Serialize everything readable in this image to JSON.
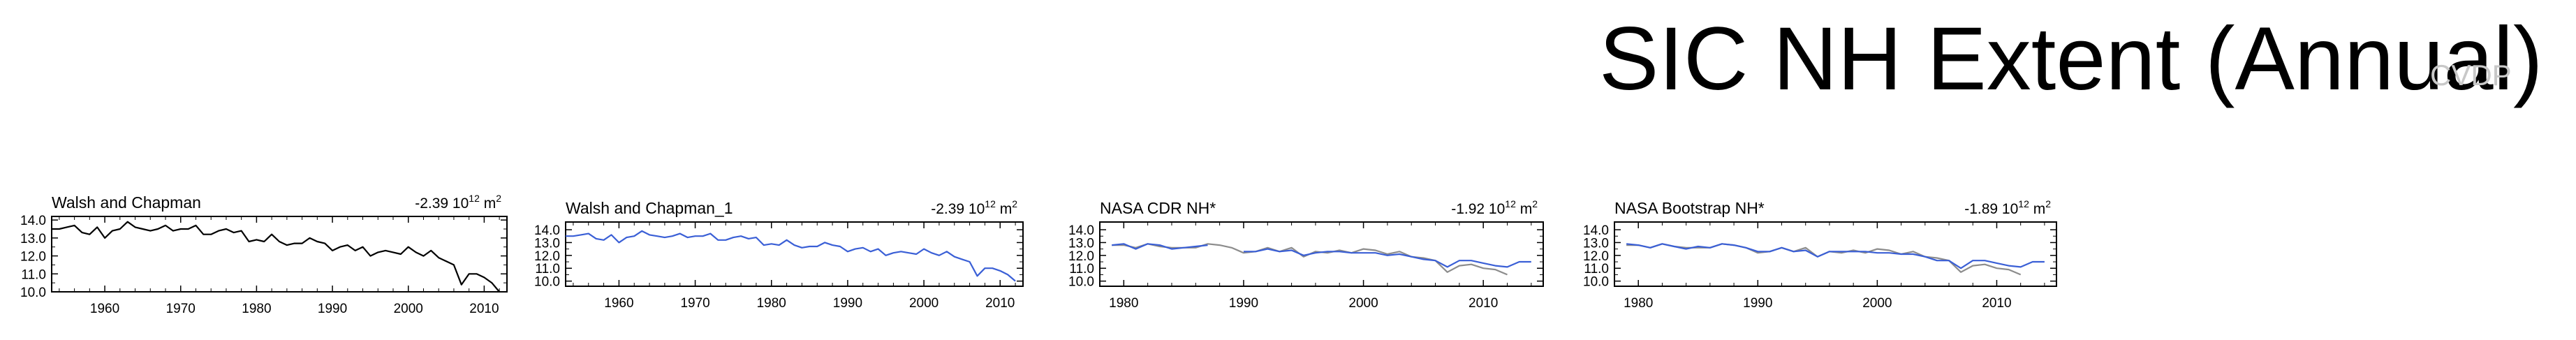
{
  "figure": {
    "title": "SIC NH Extent (Annual)",
    "watermark": "CVDP"
  },
  "colors": {
    "obs_line": "#000000",
    "model_line": "#3a5fd6",
    "reference_line": "#8c8c8c",
    "frame": "#000000",
    "background": "#ffffff"
  },
  "chart_data": [
    {
      "type": "line",
      "title": "Walsh and Chapman",
      "trend_text": "-2.39 10",
      "trend_exp": "12",
      "trend_unit": " m",
      "trend_unit_exp": "2",
      "xlim": [
        1953,
        2013
      ],
      "ylim": [
        10.0,
        14.2
      ],
      "xticks": [
        1960,
        1970,
        1980,
        1990,
        2000,
        2010
      ],
      "yticks": [
        10.0,
        11.0,
        12.0,
        13.0,
        14.0
      ],
      "ytick_labels": [
        "10.0",
        "11.0",
        "12.0",
        "13.0",
        "14.0"
      ],
      "x": [
        1953,
        1954,
        1955,
        1956,
        1957,
        1958,
        1959,
        1960,
        1961,
        1962,
        1963,
        1964,
        1965,
        1966,
        1967,
        1968,
        1969,
        1970,
        1971,
        1972,
        1973,
        1974,
        1975,
        1976,
        1977,
        1978,
        1979,
        1980,
        1981,
        1982,
        1983,
        1984,
        1985,
        1986,
        1987,
        1988,
        1989,
        1990,
        1991,
        1992,
        1993,
        1994,
        1995,
        1996,
        1997,
        1998,
        1999,
        2000,
        2001,
        2002,
        2003,
        2004,
        2005,
        2006,
        2007,
        2008,
        2009,
        2010,
        2011,
        2012
      ],
      "series": [
        {
          "color_key": "obs_line",
          "values": [
            13.5,
            13.5,
            13.6,
            13.7,
            13.3,
            13.2,
            13.6,
            13.0,
            13.4,
            13.5,
            13.9,
            13.6,
            13.5,
            13.4,
            13.5,
            13.7,
            13.4,
            13.5,
            13.5,
            13.7,
            13.2,
            13.2,
            13.4,
            13.5,
            13.3,
            13.4,
            12.8,
            12.9,
            12.8,
            13.2,
            12.8,
            12.6,
            12.7,
            12.7,
            13.0,
            12.8,
            12.7,
            12.3,
            12.5,
            12.6,
            12.3,
            12.5,
            12.0,
            12.2,
            12.3,
            12.2,
            12.1,
            12.5,
            12.2,
            12.0,
            12.3,
            11.9,
            11.7,
            11.5,
            10.4,
            11.0,
            11.0,
            10.8,
            10.5,
            10.0
          ]
        }
      ]
    },
    {
      "type": "line",
      "title": "Walsh and Chapman_1",
      "trend_text": "-2.39 10",
      "trend_exp": "12",
      "trend_unit": " m",
      "trend_unit_exp": "2",
      "xlim": [
        1953,
        2013
      ],
      "ylim": [
        9.6,
        14.6
      ],
      "xticks": [
        1960,
        1970,
        1980,
        1990,
        2000,
        2010
      ],
      "yticks": [
        10.0,
        11.0,
        12.0,
        13.0,
        14.0
      ],
      "ytick_labels": [
        "10.0",
        "11.0",
        "12.0",
        "13.0",
        "14.0"
      ],
      "x": [
        1953,
        1954,
        1955,
        1956,
        1957,
        1958,
        1959,
        1960,
        1961,
        1962,
        1963,
        1964,
        1965,
        1966,
        1967,
        1968,
        1969,
        1970,
        1971,
        1972,
        1973,
        1974,
        1975,
        1976,
        1977,
        1978,
        1979,
        1980,
        1981,
        1982,
        1983,
        1984,
        1985,
        1986,
        1987,
        1988,
        1989,
        1990,
        1991,
        1992,
        1993,
        1994,
        1995,
        1996,
        1997,
        1998,
        1999,
        2000,
        2001,
        2002,
        2003,
        2004,
        2005,
        2006,
        2007,
        2008,
        2009,
        2010,
        2011,
        2012
      ],
      "series": [
        {
          "color_key": "model_line",
          "values": [
            13.5,
            13.5,
            13.6,
            13.7,
            13.3,
            13.2,
            13.6,
            13.0,
            13.4,
            13.5,
            13.9,
            13.6,
            13.5,
            13.4,
            13.5,
            13.7,
            13.4,
            13.5,
            13.5,
            13.7,
            13.2,
            13.2,
            13.4,
            13.5,
            13.3,
            13.4,
            12.8,
            12.9,
            12.8,
            13.2,
            12.8,
            12.6,
            12.7,
            12.7,
            13.0,
            12.8,
            12.7,
            12.3,
            12.5,
            12.6,
            12.3,
            12.5,
            12.0,
            12.2,
            12.3,
            12.2,
            12.1,
            12.5,
            12.2,
            12.0,
            12.3,
            11.9,
            11.7,
            11.5,
            10.4,
            11.0,
            11.0,
            10.8,
            10.5,
            10.0
          ]
        }
      ]
    },
    {
      "type": "line",
      "title": "NASA CDR NH*",
      "trend_text": "-1.92 10",
      "trend_exp": "12",
      "trend_unit": " m",
      "trend_unit_exp": "2",
      "xlim": [
        1978,
        2015
      ],
      "ylim": [
        9.6,
        14.6
      ],
      "xticks": [
        1980,
        1990,
        2000,
        2010
      ],
      "yticks": [
        10.0,
        11.0,
        12.0,
        13.0,
        14.0
      ],
      "ytick_labels": [
        "10.0",
        "11.0",
        "12.0",
        "13.0",
        "14.0"
      ],
      "x": [
        1979,
        1980,
        1981,
        1982,
        1983,
        1984,
        1985,
        1986,
        1987,
        1988,
        1989,
        1990,
        1991,
        1992,
        1993,
        1994,
        1995,
        1996,
        1997,
        1998,
        1999,
        2000,
        2001,
        2002,
        2003,
        2004,
        2005,
        2006,
        2007,
        2008,
        2009,
        2010,
        2011,
        2012,
        2013,
        2014
      ],
      "series": [
        {
          "color_key": "reference_line",
          "values": [
            12.8,
            12.8,
            12.6,
            12.9,
            12.7,
            12.6,
            12.6,
            12.6,
            12.9,
            12.8,
            12.6,
            12.2,
            12.3,
            12.6,
            12.3,
            12.6,
            11.9,
            12.3,
            12.2,
            12.4,
            12.2,
            12.5,
            12.4,
            12.1,
            12.3,
            11.9,
            11.8,
            11.6,
            10.7,
            11.2,
            11.3,
            11.0,
            10.9,
            10.5,
            null,
            null
          ]
        },
        {
          "color_key": "model_line",
          "values": [
            12.8,
            12.9,
            12.5,
            12.9,
            12.8,
            12.5,
            12.6,
            12.7,
            12.8,
            null,
            null,
            12.3,
            12.3,
            12.5,
            12.3,
            12.4,
            12.0,
            12.2,
            12.3,
            12.3,
            12.2,
            12.2,
            12.2,
            12.0,
            12.1,
            11.9,
            11.7,
            11.6,
            11.1,
            11.6,
            11.6,
            11.4,
            11.2,
            11.1,
            11.5,
            11.5
          ]
        }
      ]
    },
    {
      "type": "line",
      "title": "NASA Bootstrap NH*",
      "trend_text": "-1.89 10",
      "trend_exp": "12",
      "trend_unit": " m",
      "trend_unit_exp": "2",
      "xlim": [
        1978,
        2015
      ],
      "ylim": [
        9.6,
        14.6
      ],
      "xticks": [
        1980,
        1990,
        2000,
        2010
      ],
      "yticks": [
        10.0,
        11.0,
        12.0,
        13.0,
        14.0
      ],
      "ytick_labels": [
        "10.0",
        "11.0",
        "12.0",
        "13.0",
        "14.0"
      ],
      "x": [
        1979,
        1980,
        1981,
        1982,
        1983,
        1984,
        1985,
        1986,
        1987,
        1988,
        1989,
        1990,
        1991,
        1992,
        1993,
        1994,
        1995,
        1996,
        1997,
        1998,
        1999,
        2000,
        2001,
        2002,
        2003,
        2004,
        2005,
        2006,
        2007,
        2008,
        2009,
        2010,
        2011,
        2012,
        2013,
        2014
      ],
      "series": [
        {
          "color_key": "reference_line",
          "values": [
            12.8,
            12.8,
            12.6,
            12.9,
            12.7,
            12.6,
            12.6,
            12.6,
            12.9,
            12.8,
            12.6,
            12.2,
            12.3,
            12.6,
            12.3,
            12.6,
            11.9,
            12.3,
            12.2,
            12.4,
            12.2,
            12.5,
            12.4,
            12.1,
            12.3,
            11.9,
            11.8,
            11.6,
            10.7,
            11.2,
            11.3,
            11.0,
            10.9,
            10.5,
            null,
            null
          ]
        },
        {
          "color_key": "model_line",
          "values": [
            12.9,
            12.8,
            12.6,
            12.9,
            12.7,
            12.5,
            12.7,
            12.6,
            12.9,
            12.8,
            12.6,
            12.3,
            12.3,
            12.6,
            12.3,
            12.4,
            11.9,
            12.3,
            12.3,
            12.3,
            12.3,
            12.2,
            12.2,
            12.1,
            12.1,
            11.9,
            11.6,
            11.6,
            11.0,
            11.6,
            11.6,
            11.4,
            11.2,
            11.1,
            11.5,
            11.5
          ]
        }
      ]
    }
  ]
}
